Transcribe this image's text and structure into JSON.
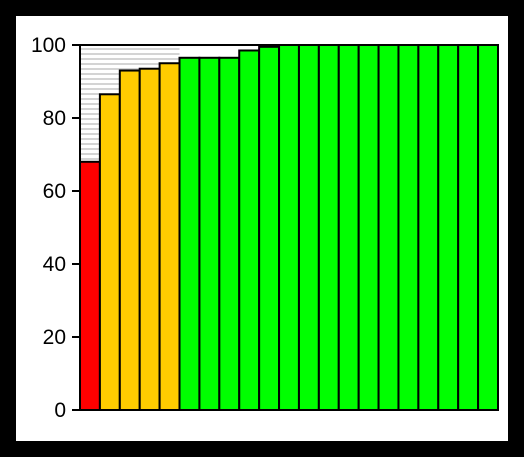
{
  "chart_data": {
    "type": "bar",
    "title": "",
    "xlabel": "",
    "ylabel": "",
    "ylim": [
      0,
      100
    ],
    "yticks": [
      "0",
      "20",
      "40",
      "60",
      "80",
      "100"
    ],
    "background": "#000000",
    "plot_background": "#ffffff",
    "bar_outline": "#000000",
    "headroom_hatch": true,
    "values": [
      68,
      86.5,
      93,
      93.5,
      95,
      96.5,
      96.5,
      96.5,
      98.5,
      99.5,
      100,
      100,
      100,
      100,
      100,
      100,
      100,
      100,
      100,
      100,
      100
    ],
    "bar_colors": [
      "#ff0000",
      "#ffcc00",
      "#ffcc00",
      "#ffcc00",
      "#ffcc00",
      "#00ff00",
      "#00ff00",
      "#00ff00",
      "#00ff00",
      "#00ff00",
      "#00ff00",
      "#00ff00",
      "#00ff00",
      "#00ff00",
      "#00ff00",
      "#00ff00",
      "#00ff00",
      "#00ff00",
      "#00ff00",
      "#00ff00",
      "#00ff00"
    ],
    "legend": "none"
  }
}
